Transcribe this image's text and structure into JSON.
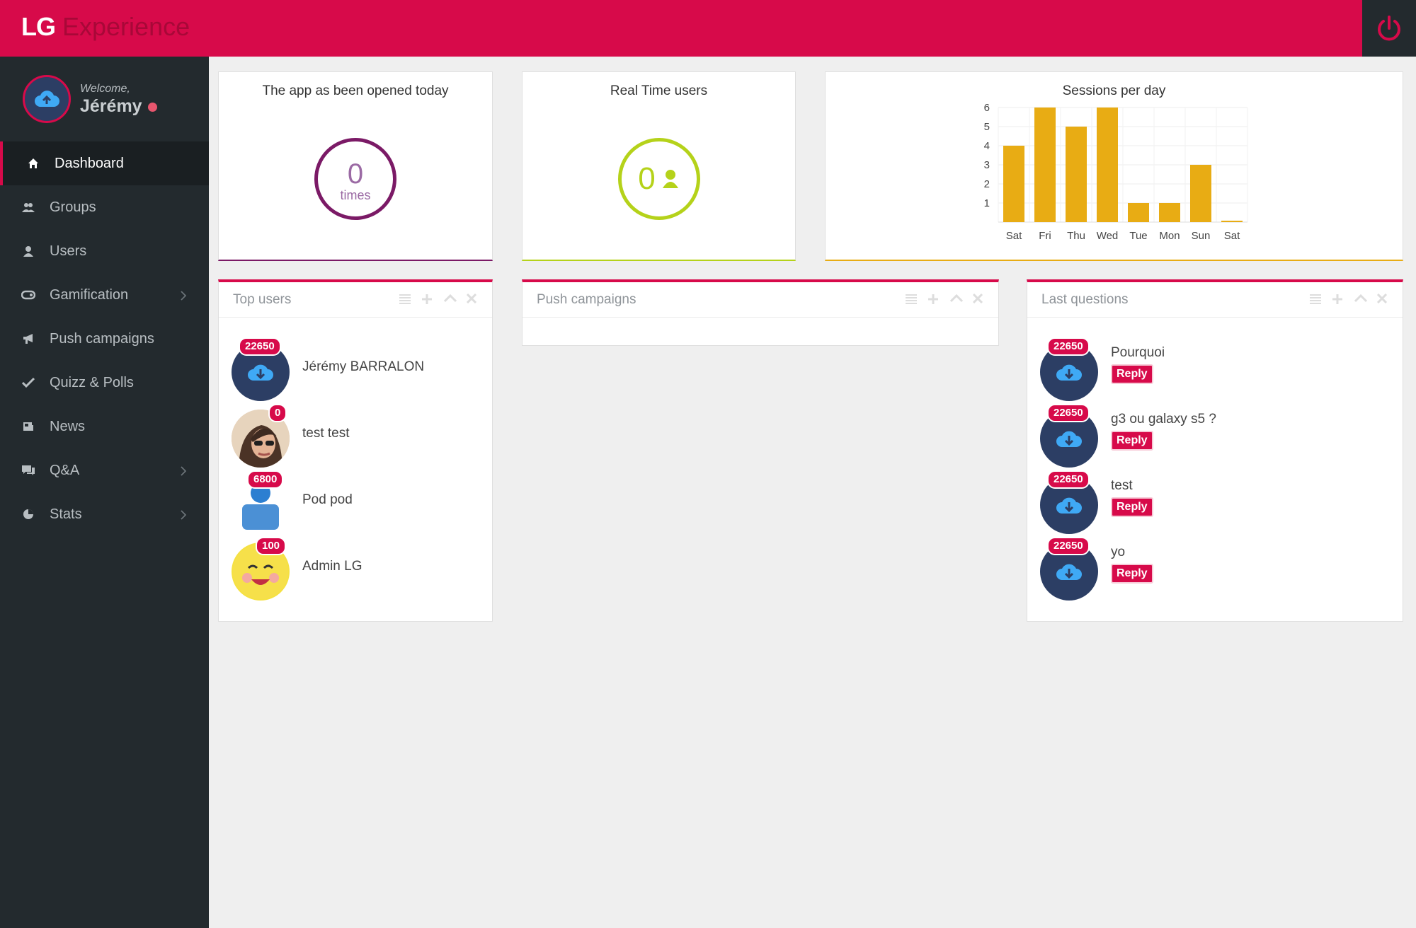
{
  "brand": {
    "logo": "LG",
    "product": "Experience"
  },
  "header": {
    "power_icon": "power-icon"
  },
  "profile": {
    "welcome": "Welcome,",
    "name": "Jérémy"
  },
  "sidebar": {
    "items": [
      {
        "label": "Dashboard",
        "icon": "home-icon"
      },
      {
        "label": "Groups",
        "icon": "group-icon"
      },
      {
        "label": "Users",
        "icon": "user-icon"
      },
      {
        "label": "Gamification",
        "icon": "gamepad-icon"
      },
      {
        "label": "Push campaigns",
        "icon": "bullhorn-icon"
      },
      {
        "label": "Quizz & Polls",
        "icon": "check-icon"
      },
      {
        "label": "News",
        "icon": "newspaper-icon"
      },
      {
        "label": "Q&A",
        "icon": "chat-icon"
      },
      {
        "label": "Stats",
        "icon": "pie-chart-icon"
      }
    ]
  },
  "stats": {
    "opened": {
      "title": "The app as been opened today",
      "value": "0",
      "unit": "times"
    },
    "realtime": {
      "title": "Real Time users",
      "value": "0"
    },
    "sessions": {
      "title": "Sessions per day"
    }
  },
  "chart_data": {
    "type": "bar",
    "title": "Sessions per day",
    "categories": [
      "Sat",
      "Fri",
      "Thu",
      "Wed",
      "Tue",
      "Mon",
      "Sun",
      "Sat"
    ],
    "values": [
      4,
      6,
      5,
      6,
      1,
      1,
      3,
      0
    ],
    "yticks": [
      1,
      2,
      3,
      4,
      5,
      6
    ],
    "ylim": [
      0,
      6
    ],
    "grid": true,
    "color": "#e8ac14"
  },
  "top_users": {
    "title": "Top users",
    "items": [
      {
        "name": "Jérémy BARRALON",
        "score": "22650"
      },
      {
        "name": "test test",
        "score": "0"
      },
      {
        "name": "Pod pod",
        "score": "6800"
      },
      {
        "name": "Admin LG",
        "score": "100"
      }
    ]
  },
  "push_campaigns": {
    "title": "Push campaigns"
  },
  "last_questions": {
    "title": "Last questions",
    "reply_label": "Reply",
    "items": [
      {
        "text": "Pourquoi",
        "score": "22650"
      },
      {
        "text": "g3 ou galaxy s5 ?",
        "score": "22650"
      },
      {
        "text": "test",
        "score": "22650"
      },
      {
        "text": "yo",
        "score": "22650"
      }
    ]
  },
  "colors": {
    "accent": "#d70a4a",
    "sidebar": "#232a2e",
    "purple": "#7b1a66",
    "green": "#b5d21a",
    "bar": "#e8ac14"
  }
}
